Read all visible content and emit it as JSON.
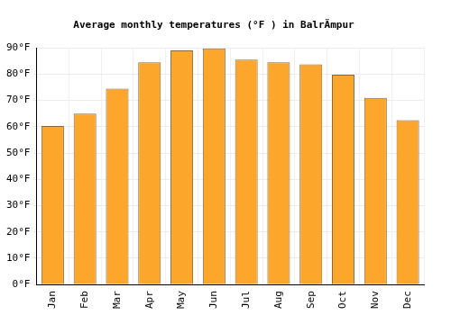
{
  "chart_data": {
    "type": "bar",
    "title": "Average monthly temperatures (°F ) in BalrÄmpur",
    "categories": [
      "Jan",
      "Feb",
      "Mar",
      "Apr",
      "May",
      "Jun",
      "Jul",
      "Aug",
      "Sep",
      "Oct",
      "Nov",
      "Dec"
    ],
    "values": [
      60.3,
      65,
      74.5,
      84.5,
      89,
      89.8,
      85.5,
      84.5,
      83.7,
      79.8,
      71,
      62.5
    ],
    "color": "#fca62c",
    "ylim": [
      0,
      90
    ],
    "yticks": [
      {
        "value": 0,
        "label": "0°F"
      },
      {
        "value": 10,
        "label": "10°F"
      },
      {
        "value": 20,
        "label": "20°F"
      },
      {
        "value": 30,
        "label": "30°F"
      },
      {
        "value": 40,
        "label": "40°F"
      },
      {
        "value": 50,
        "label": "50°F"
      },
      {
        "value": 60,
        "label": "60°F"
      },
      {
        "value": 70,
        "label": "70°F"
      },
      {
        "value": 80,
        "label": "80°F"
      },
      {
        "value": 90,
        "label": "90°F"
      }
    ],
    "grid": true
  }
}
